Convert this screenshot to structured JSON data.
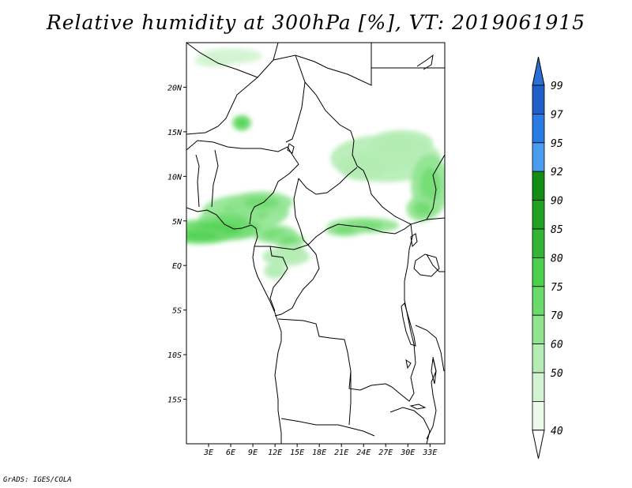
{
  "title": "Relative humidity at 300hPa [%], VT: 2019061915",
  "credit": "GrADS: IGES/COLA",
  "chart_data": {
    "type": "map",
    "variable": "Relative humidity",
    "level": "300hPa",
    "units": "%",
    "valid_time": "2019061915",
    "lon_range": [
      0,
      35
    ],
    "lat_range": [
      -20,
      25
    ],
    "x_ticks": [
      "3E",
      "6E",
      "9E",
      "12E",
      "15E",
      "18E",
      "21E",
      "24E",
      "27E",
      "30E",
      "33E"
    ],
    "y_ticks": [
      "20N",
      "15N",
      "10N",
      "5N",
      "EQ",
      "5S",
      "10S",
      "15S"
    ],
    "colorbar": {
      "levels": [
        "99",
        "97",
        "95",
        "92",
        "90",
        "85",
        "80",
        "75",
        "70",
        "60",
        "50",
        "40"
      ],
      "colors": [
        "#1e5fc8",
        "#2a7ae4",
        "#4a9cf0",
        "#128c12",
        "#22a022",
        "#34b434",
        "#4cd04c",
        "#6ada6a",
        "#90e490",
        "#b4ecb4",
        "#d2f4d2",
        "#ebfaeb"
      ],
      "top_arrow_color": "#2a6fd6",
      "bottom_arrow_color": "#ffffff"
    },
    "humid_regions": [
      {
        "name": "north-sahel-patch",
        "lon": 7.5,
        "lat": 16.0,
        "rh": 75
      },
      {
        "name": "top-strip",
        "lon": 6.0,
        "lat": 23.5,
        "rh": 50
      },
      {
        "name": "nigeria-cameroon-band",
        "lon": 8.0,
        "lat": 6.0,
        "rh": 70
      },
      {
        "name": "gulf-of-guinea-coast",
        "lon": 4.0,
        "lat": 4.0,
        "rh": 75
      },
      {
        "name": "cameroon-south",
        "lon": 12.0,
        "lat": 3.5,
        "rh": 70
      },
      {
        "name": "chad-sudan-plume",
        "lon": 27.0,
        "lat": 12.0,
        "rh": 60
      },
      {
        "name": "sudan-east-band",
        "lon": 33.0,
        "lat": 9.0,
        "rh": 70
      },
      {
        "name": "car-south",
        "lon": 24.0,
        "lat": 4.5,
        "rh": 70
      },
      {
        "name": "gabon-congo-patches",
        "lon": 13.5,
        "lat": 1.0,
        "rh": 60
      }
    ]
  }
}
